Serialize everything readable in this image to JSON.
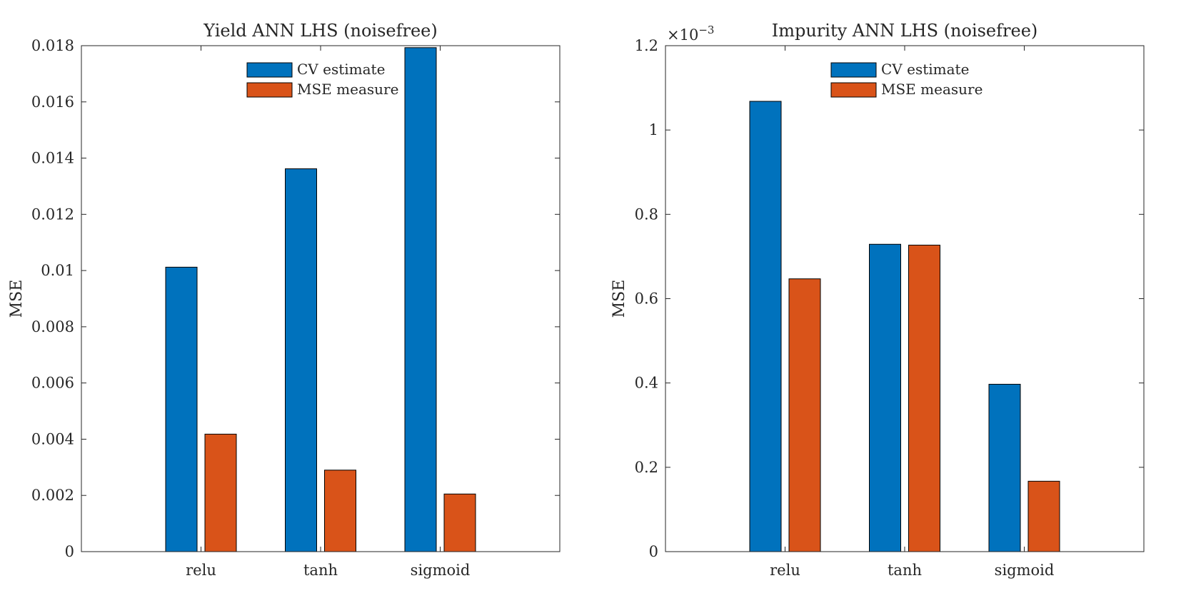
{
  "chart_data": [
    {
      "type": "bar",
      "title": "Yield ANN LHS (noisefree)",
      "xlabel": "",
      "ylabel": "MSE",
      "categories": [
        "relu",
        "tanh",
        "sigmoid"
      ],
      "series": [
        {
          "name": "CV estimate",
          "color": "#0072BD",
          "values": [
            0.01012,
            0.01362,
            0.01793
          ]
        },
        {
          "name": "MSE measure",
          "color": "#D95319",
          "values": [
            0.00418,
            0.0029,
            0.00205
          ]
        }
      ],
      "ylim": [
        0,
        0.018
      ],
      "yticks": [
        0,
        0.002,
        0.004,
        0.006,
        0.008,
        0.01,
        0.012,
        0.014,
        0.016,
        0.018
      ],
      "ytick_labels": [
        "0",
        "0.002",
        "0.004",
        "0.006",
        "0.008",
        "0.01",
        "0.012",
        "0.014",
        "0.016",
        "0.018"
      ],
      "exponent_label": "",
      "legend": "top-center",
      "grid": false
    },
    {
      "type": "bar",
      "title": "Impurity ANN LHS (noisefree)",
      "xlabel": "",
      "ylabel": "MSE",
      "categories": [
        "relu",
        "tanh",
        "sigmoid"
      ],
      "series": [
        {
          "name": "CV estimate",
          "color": "#0072BD",
          "values": [
            1.068,
            0.729,
            0.397
          ]
        },
        {
          "name": "MSE measure",
          "color": "#D95319",
          "values": [
            0.647,
            0.727,
            0.167
          ]
        }
      ],
      "ylim": [
        0,
        1.2
      ],
      "yticks": [
        0,
        0.2,
        0.4,
        0.6,
        0.8,
        1,
        1.2
      ],
      "ytick_labels": [
        "0",
        "0.2",
        "0.4",
        "0.6",
        "0.8",
        "1",
        "1.2"
      ],
      "exponent_label": "×10",
      "exponent_power": "−3",
      "legend": "top-center",
      "grid": false
    }
  ]
}
